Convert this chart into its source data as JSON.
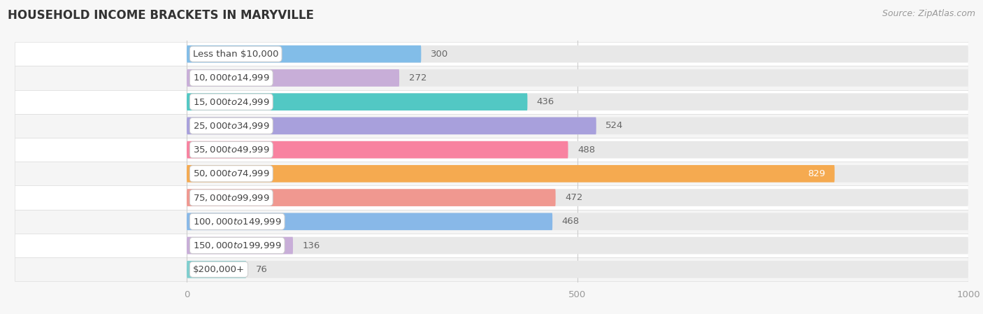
{
  "title": "HOUSEHOLD INCOME BRACKETS IN MARYVILLE",
  "source": "Source: ZipAtlas.com",
  "categories": [
    "Less than $10,000",
    "$10,000 to $14,999",
    "$15,000 to $24,999",
    "$25,000 to $34,999",
    "$35,000 to $49,999",
    "$50,000 to $74,999",
    "$75,000 to $99,999",
    "$100,000 to $149,999",
    "$150,000 to $199,999",
    "$200,000+"
  ],
  "values": [
    300,
    272,
    436,
    524,
    488,
    829,
    472,
    468,
    136,
    76
  ],
  "bar_colors": [
    "#82bde8",
    "#c8aed8",
    "#52c8c4",
    "#a8a0dc",
    "#f882a0",
    "#f5aa50",
    "#f09890",
    "#88b8e8",
    "#c8aed8",
    "#7ecece"
  ],
  "xlim_min": -220,
  "xlim_max": 1000,
  "xticks": [
    0,
    500,
    1000
  ],
  "bg_color": "#f7f7f7",
  "row_bg_color": "#ffffff",
  "alt_row_bg_color": "#f0f0f0",
  "bar_track_color": "#e8e8e8",
  "label_color_default": "#666666",
  "label_color_special": "#ffffff",
  "special_bar_idx": 5,
  "title_fontsize": 12,
  "label_fontsize": 9.5,
  "cat_fontsize": 9.5,
  "tick_fontsize": 9.5,
  "source_fontsize": 9
}
